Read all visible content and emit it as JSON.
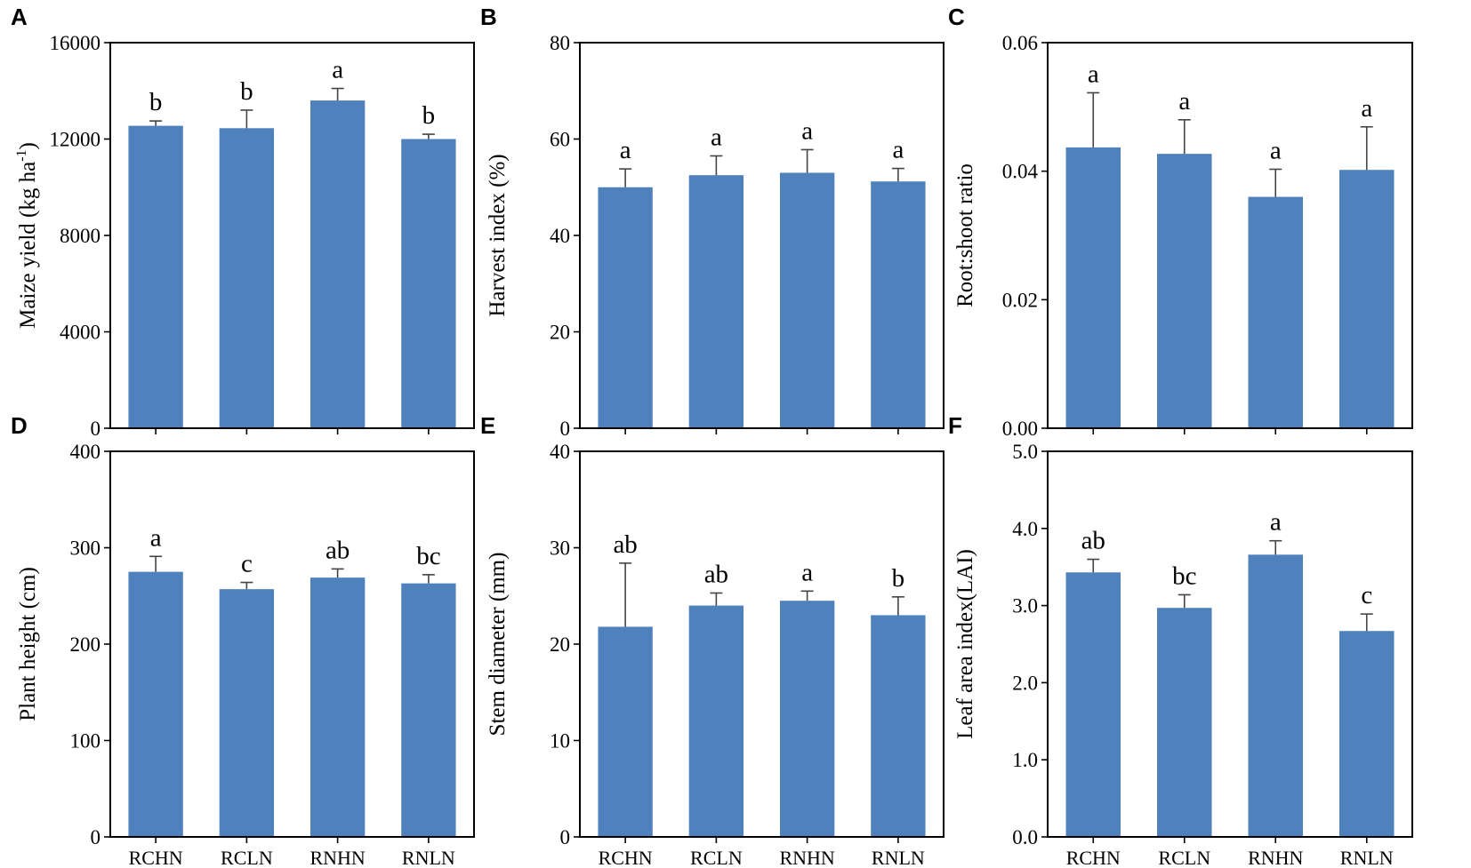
{
  "colors": {
    "bar": "#4F81BD",
    "axis": "#000000",
    "error": "#444444"
  },
  "chart_data": [
    {
      "panel": "A",
      "type": "bar",
      "categories": [
        "RCHN",
        "RCLN",
        "RNHN",
        "RNLN"
      ],
      "values": [
        12550,
        12450,
        13600,
        12000
      ],
      "errors": [
        200,
        750,
        500,
        200
      ],
      "significance": [
        "b",
        "b",
        "a",
        "b"
      ],
      "ylabel": "Maize yield (kg ha",
      "ylabel_sup": "-1",
      "ylabel_end": ")",
      "ylim": [
        0,
        16000
      ],
      "yticks": [
        0,
        4000,
        8000,
        12000,
        16000
      ],
      "ytick_labels": [
        "0",
        "4000",
        "8000",
        "12000",
        "16000"
      ],
      "show_xlabels": false
    },
    {
      "panel": "B",
      "type": "bar",
      "categories": [
        "RCHN",
        "RCLN",
        "RNHN",
        "RNLN"
      ],
      "values": [
        50,
        52.5,
        53,
        51.2
      ],
      "errors": [
        3.8,
        4,
        4.8,
        2.7
      ],
      "significance": [
        "a",
        "a",
        "a",
        "a"
      ],
      "ylabel": "Harvest index (%)",
      "ylim": [
        0,
        80
      ],
      "yticks": [
        0,
        20,
        40,
        60,
        80
      ],
      "ytick_labels": [
        "0",
        "20",
        "40",
        "60",
        "80"
      ],
      "show_xlabels": false
    },
    {
      "panel": "C",
      "type": "bar",
      "categories": [
        "RCHN",
        "RCLN",
        "RNHN",
        "RNLN"
      ],
      "values": [
        0.0437,
        0.0427,
        0.036,
        0.0402
      ],
      "errors": [
        0.0085,
        0.0053,
        0.0043,
        0.0067
      ],
      "significance": [
        "a",
        "a",
        "a",
        "a"
      ],
      "ylabel": "Root:shoot ratio",
      "ylim": [
        0,
        0.06
      ],
      "yticks": [
        0,
        0.02,
        0.04,
        0.06
      ],
      "ytick_labels": [
        "0.00",
        "0.02",
        "0.04",
        "0.06"
      ],
      "show_xlabels": false
    },
    {
      "panel": "D",
      "type": "bar",
      "categories": [
        "RCHN",
        "RCLN",
        "RNHN",
        "RNLN"
      ],
      "values": [
        275,
        257,
        269,
        263
      ],
      "errors": [
        16,
        7,
        9,
        9
      ],
      "significance": [
        "a",
        "c",
        "ab",
        "bc"
      ],
      "ylabel": "Plant height (cm)",
      "ylim": [
        0,
        400
      ],
      "yticks": [
        0,
        100,
        200,
        300,
        400
      ],
      "ytick_labels": [
        "0",
        "100",
        "200",
        "300",
        "400"
      ],
      "show_xlabels": true
    },
    {
      "panel": "E",
      "type": "bar",
      "categories": [
        "RCHN",
        "RCLN",
        "RNHN",
        "RNLN"
      ],
      "values": [
        21.8,
        24,
        24.5,
        23
      ],
      "errors": [
        6.6,
        1.3,
        1,
        1.9
      ],
      "significance": [
        "ab",
        "ab",
        "a",
        "b"
      ],
      "ylabel": "Stem diameter (mm)",
      "ylim": [
        0,
        40
      ],
      "yticks": [
        0,
        10,
        20,
        30,
        40
      ],
      "ytick_labels": [
        "0",
        "10",
        "20",
        "30",
        "40"
      ],
      "show_xlabels": true
    },
    {
      "panel": "F",
      "type": "bar",
      "categories": [
        "RCHN",
        "RCLN",
        "RNHN",
        "RNLN"
      ],
      "values": [
        3.43,
        2.97,
        3.66,
        2.67
      ],
      "errors": [
        0.17,
        0.17,
        0.18,
        0.22
      ],
      "significance": [
        "ab",
        "bc",
        "a",
        "c"
      ],
      "ylabel": "Leaf area index(LAI)",
      "ylim": [
        0,
        5
      ],
      "yticks": [
        0,
        1,
        2,
        3,
        4,
        5
      ],
      "ytick_labels": [
        "0.0",
        "1.0",
        "2.0",
        "3.0",
        "4.0",
        "5.0"
      ],
      "show_xlabels": true
    }
  ]
}
